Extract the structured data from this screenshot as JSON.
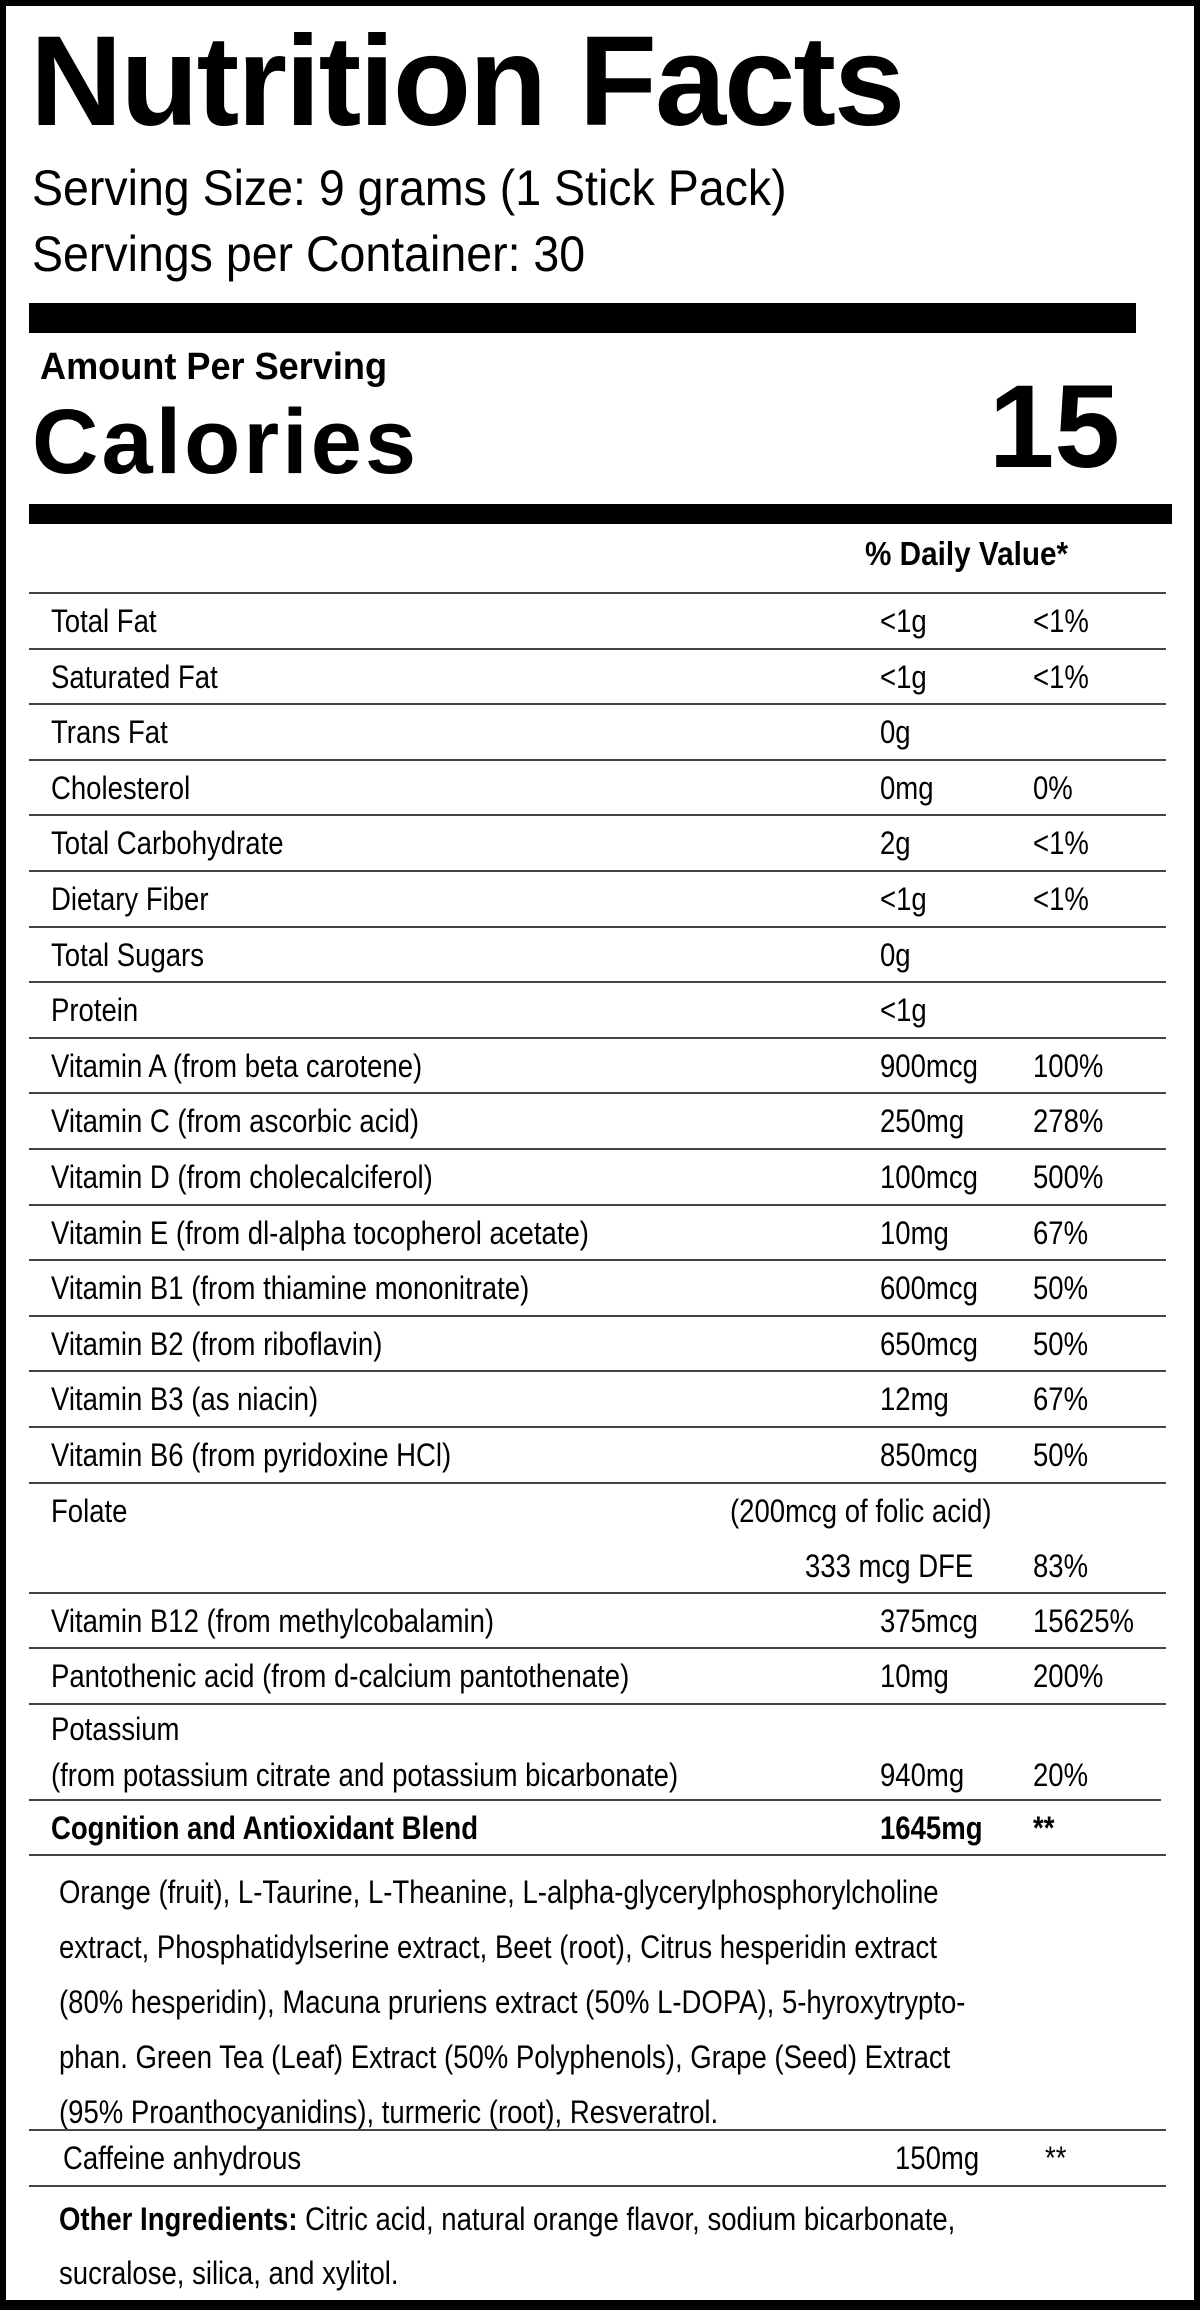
{
  "header": {
    "title": "Nutrition Facts",
    "serving_size": "Serving Size: 9 grams (1 Stick Pack)",
    "servings_per_container": "Servings per Container: 30"
  },
  "calories": {
    "amount_per_serving": "Amount Per Serving",
    "label": "Calories",
    "value": "15"
  },
  "daily_value_header": "% Daily Value*",
  "rows": [
    {
      "name": "Total Fat",
      "amount": "<1g",
      "dv": "<1%"
    },
    {
      "name": "Saturated Fat",
      "amount": "<1g",
      "dv": "<1%"
    },
    {
      "name": "Trans Fat",
      "amount": "0g",
      "dv": ""
    },
    {
      "name": "Cholesterol",
      "amount": "0mg",
      "dv": "0%"
    },
    {
      "name": "Total Carbohydrate",
      "amount": "2g",
      "dv": "<1%"
    },
    {
      "name": "Dietary Fiber",
      "amount": "<1g",
      "dv": "<1%"
    },
    {
      "name": "Total Sugars",
      "amount": "0g",
      "dv": ""
    },
    {
      "name": "Protein",
      "amount": "<1g",
      "dv": ""
    },
    {
      "name": "Vitamin A (from beta carotene)",
      "amount": "900mcg",
      "dv": "100%"
    },
    {
      "name": "Vitamin C (from ascorbic acid)",
      "amount": "250mg",
      "dv": "278%"
    },
    {
      "name": "Vitamin D (from cholecalciferol)",
      "amount": "100mcg",
      "dv": "500%"
    },
    {
      "name": "Vitamin E (from dl-alpha tocopherol acetate)",
      "amount": "10mg",
      "dv": "67%"
    },
    {
      "name": "Vitamin B1 (from thiamine mononitrate)",
      "amount": "600mcg",
      "dv": "50%"
    },
    {
      "name": "Vitamin B2 (from riboflavin)",
      "amount": "650mcg",
      "dv": "50%"
    },
    {
      "name": "Vitamin B3 (as niacin)",
      "amount": "12mg",
      "dv": "67%"
    },
    {
      "name": "Vitamin B6 (from pyridoxine HCl)",
      "amount": "850mcg",
      "dv": "50%"
    }
  ],
  "folate": {
    "name": "Folate",
    "note": "(200mcg of folic acid)",
    "amount": "333 mcg DFE",
    "dv": "83%"
  },
  "rows2": [
    {
      "name": "Vitamin B12 (from methylcobalamin)",
      "amount": "375mcg",
      "dv": "15625%"
    },
    {
      "name": "Pantothenic acid (from d-calcium pantothenate)",
      "amount": "10mg",
      "dv": "200%"
    }
  ],
  "potassium": {
    "name": "Potassium",
    "source": "(from potassium citrate and potassium bicarbonate)",
    "amount": "940mg",
    "dv": "20%"
  },
  "blend": {
    "name": "Cognition and Antioxidant Blend",
    "amount": "1645mg",
    "dv": "**",
    "ingredients_lines": [
      "Orange (fruit), L-Taurine, L-Theanine, L-alpha-glycerylphosphorylcholine",
      "extract, Phosphatidylserine extract, Beet (root), Citrus hesperidin extract",
      "(80% hesperidin), Macuna pruriens extract (50% L-DOPA), 5-hyroxytrypto-",
      "phan. Green Tea (Leaf) Extract (50% Polyphenols), Grape (Seed) Extract",
      "(95% Proanthocyanidins), turmeric (root), Resveratrol."
    ]
  },
  "caffeine": {
    "name": "Caffeine anhydrous",
    "amount": "150mg",
    "dv": "**"
  },
  "other_ingredients": {
    "label": "Other Ingredients:",
    "line1": " Citric acid, natural orange flavor, sodium bicarbonate,",
    "line2": "sucralose, silica, and xylitol."
  }
}
